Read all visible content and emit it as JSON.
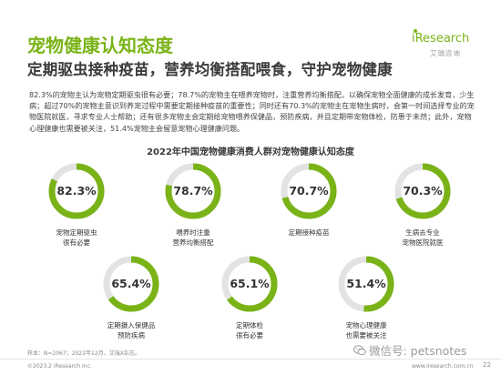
{
  "header": {
    "title": "宠物健康认知态度",
    "subtitle": "定期驱虫接种疫苗，营养均衡搭配喂食，守护宠物健康",
    "logo_text": "iResearch",
    "logo_cn": "艾瑞咨询"
  },
  "paragraph": "82.3%的宠物主认为宠物定期驱虫很有必要；78.7%的宠物主在喂养宠物时，注重营养均衡搭配，以确保宠物全面健康的成长发育，少生病；超过70%的宠物主意识到养宠过程中需要定期接种疫苗的重要性；同时还有70.3%的宠物主在宠物生病时，会第一时间选择专业的宠物医院就医，寻求专业人士帮助；还有很多宠物主会定期给宠物喂养保健品，预防疾病，并且定期带宠物体检，防患于未然；此外，宠物心理健康也需要被关注，51.4%宠物主会留意宠物心理健康问题。",
  "chart_data": {
    "type": "donut",
    "title": "2022年中国宠物健康消费人群对宠物健康认知态度",
    "accent_color": "#7ab317",
    "track_color": "#e3e3e3",
    "items": [
      {
        "label_line1": "宠物定期驱虫",
        "label_line2": "很有必要",
        "value": 82.3,
        "value_text": "82.3%"
      },
      {
        "label_line1": "喂养时注重",
        "label_line2": "营养均衡搭配",
        "value": 78.7,
        "value_text": "78.7%"
      },
      {
        "label_line1": "定期接种疫苗",
        "label_line2": "",
        "value": 70.7,
        "value_text": "70.7%"
      },
      {
        "label_line1": "生病去专业",
        "label_line2": "宠物医院就医",
        "value": 70.3,
        "value_text": "70.3%"
      },
      {
        "label_line1": "定期摄入保健品",
        "label_line2": "预防疾病",
        "value": 65.4,
        "value_text": "65.4%"
      },
      {
        "label_line1": "定期体检",
        "label_line2": "很有必要",
        "value": 65.1,
        "value_text": "65.1%"
      },
      {
        "label_line1": "宠物心理健康",
        "label_line2": "也需要被关注",
        "value": 51.4,
        "value_text": "51.4%"
      }
    ]
  },
  "footer": {
    "note": "样本：N=2067；2022年12月，艾瑞X杂志。",
    "copyright": "©2023.2 iResearch Inc.",
    "url": "www.iresearch.com.cn",
    "page": "22",
    "watermark": "微信号: petsnotes",
    "watermark_icon": "wechat-icon"
  }
}
